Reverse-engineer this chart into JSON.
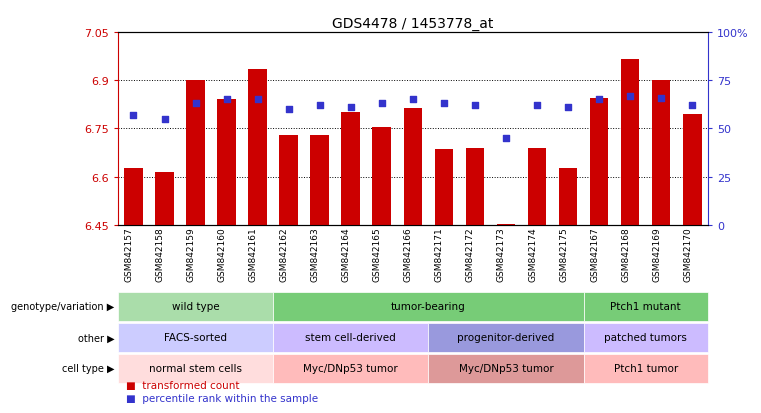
{
  "title": "GDS4478 / 1453778_at",
  "samples": [
    "GSM842157",
    "GSM842158",
    "GSM842159",
    "GSM842160",
    "GSM842161",
    "GSM842162",
    "GSM842163",
    "GSM842164",
    "GSM842165",
    "GSM842166",
    "GSM842171",
    "GSM842172",
    "GSM842173",
    "GSM842174",
    "GSM842175",
    "GSM842167",
    "GSM842168",
    "GSM842169",
    "GSM842170"
  ],
  "bar_values": [
    6.625,
    6.615,
    6.9,
    6.84,
    6.935,
    6.73,
    6.73,
    6.8,
    6.755,
    6.815,
    6.685,
    6.69,
    6.452,
    6.69,
    6.625,
    6.845,
    6.965,
    6.9,
    6.795
  ],
  "dot_values": [
    57,
    55,
    63,
    65,
    65,
    60,
    62,
    61,
    63,
    65,
    63,
    62,
    45,
    62,
    61,
    65,
    67,
    66,
    62
  ],
  "ylim_left": [
    6.45,
    7.05
  ],
  "ylim_right": [
    0,
    100
  ],
  "yticks_left": [
    6.45,
    6.6,
    6.75,
    6.9,
    7.05
  ],
  "ytick_labels_left": [
    "6.45",
    "6.6",
    "6.75",
    "6.9",
    "7.05"
  ],
  "yticks_right": [
    0,
    25,
    50,
    75,
    100
  ],
  "ytick_labels_right": [
    "0",
    "25",
    "50",
    "75",
    "100%"
  ],
  "hgrid_lines": [
    6.6,
    6.75,
    6.9
  ],
  "bar_color": "#cc0000",
  "dot_color": "#3333cc",
  "bg_color": "#ffffff",
  "annotation_rows": [
    {
      "label": "genotype/variation",
      "groups": [
        {
          "text": "wild type",
          "span": 5,
          "color": "#aaddaa"
        },
        {
          "text": "tumor-bearing",
          "span": 10,
          "color": "#77cc77"
        },
        {
          "text": "Ptch1 mutant",
          "span": 4,
          "color": "#77cc77"
        }
      ]
    },
    {
      "label": "other",
      "groups": [
        {
          "text": "FACS-sorted",
          "span": 5,
          "color": "#ccccff"
        },
        {
          "text": "stem cell-derived",
          "span": 5,
          "color": "#ccbbff"
        },
        {
          "text": "progenitor-derived",
          "span": 5,
          "color": "#9999dd"
        },
        {
          "text": "patched tumors",
          "span": 4,
          "color": "#ccbbff"
        }
      ]
    },
    {
      "label": "cell type",
      "groups": [
        {
          "text": "normal stem cells",
          "span": 5,
          "color": "#ffdddd"
        },
        {
          "text": "Myc/DNp53 tumor",
          "span": 5,
          "color": "#ffbbbb"
        },
        {
          "text": "Myc/DNp53 tumor",
          "span": 5,
          "color": "#dd9999"
        },
        {
          "text": "Ptch1 tumor",
          "span": 4,
          "color": "#ffbbbb"
        }
      ]
    }
  ],
  "legend": [
    {
      "label": "transformed count",
      "color": "#cc0000"
    },
    {
      "label": "percentile rank within the sample",
      "color": "#3333cc"
    }
  ]
}
